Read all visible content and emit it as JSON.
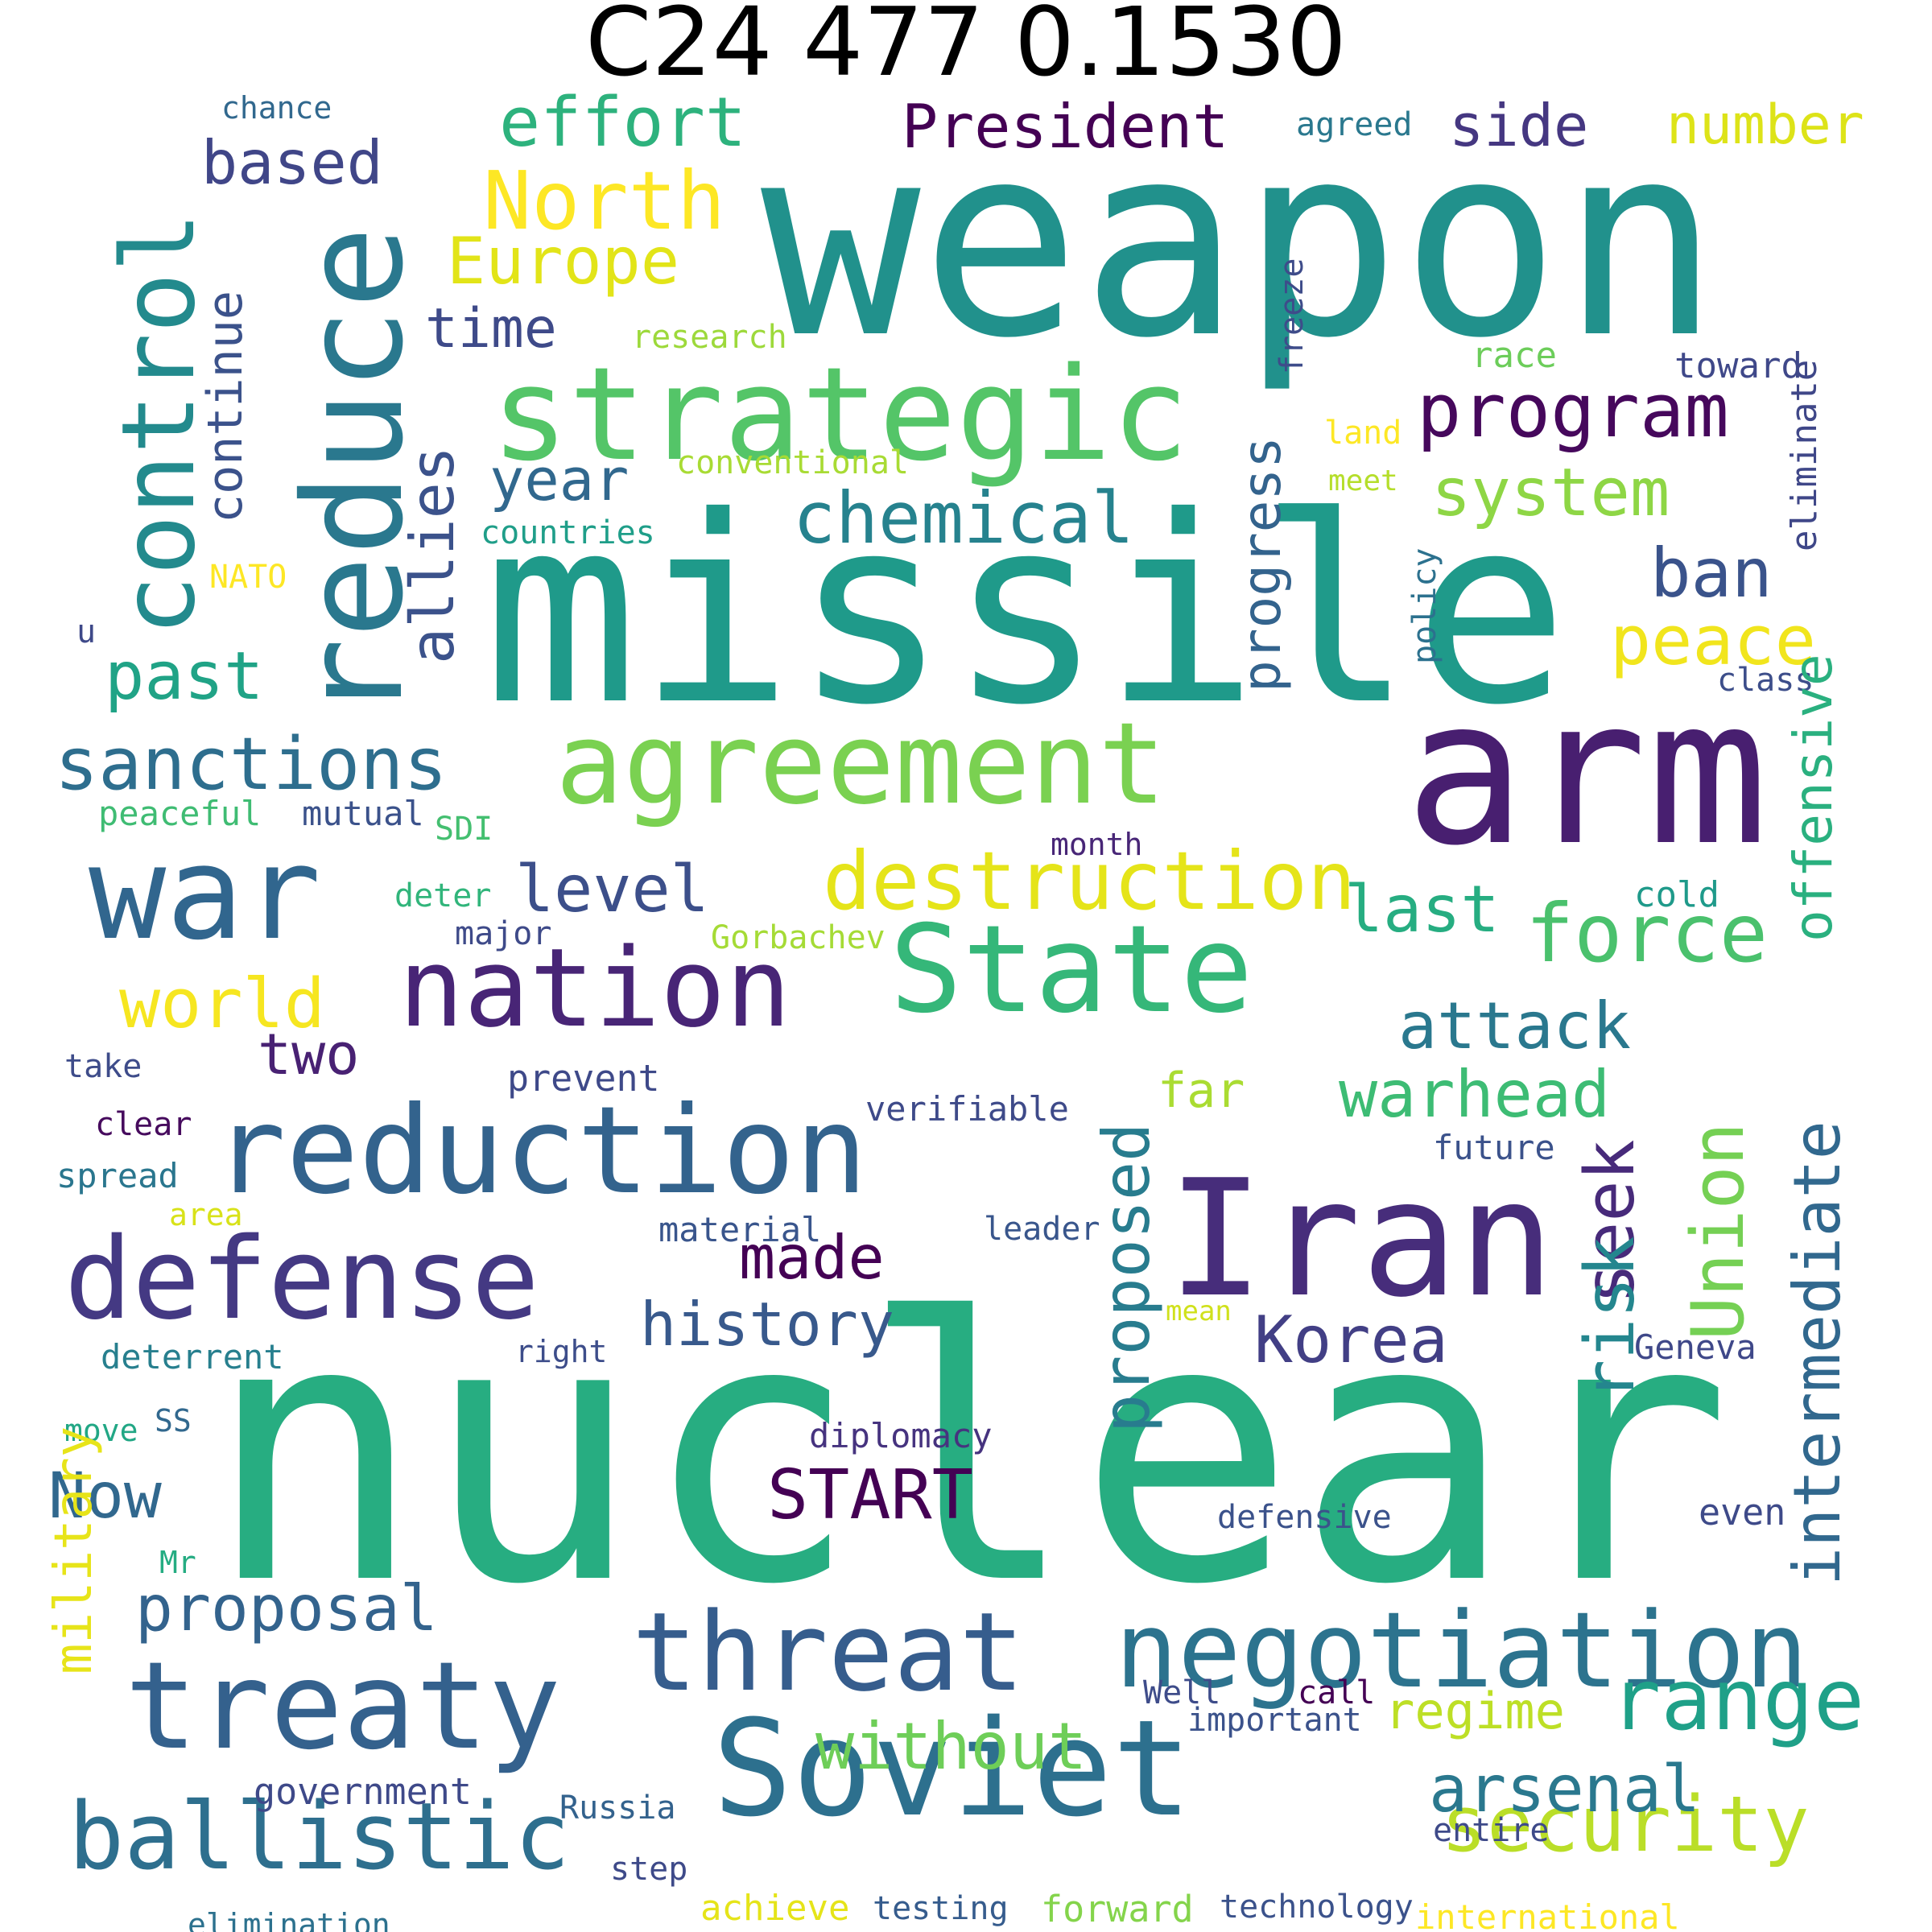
{
  "title": "C24 477 0.1530",
  "words": [
    {
      "text": "weapon",
      "color": "#21918c"
    },
    {
      "text": "missile",
      "color": "#1f9a8a"
    },
    {
      "text": "nuclear",
      "color": "#27ad81"
    },
    {
      "text": "arm",
      "color": "#481f70"
    },
    {
      "text": "reduce",
      "color": "#2a788e",
      "vertical": true
    },
    {
      "text": "control",
      "color": "#238a8d",
      "vertical": true
    },
    {
      "text": "strategic",
      "color": "#54c568"
    },
    {
      "text": "agreement",
      "color": "#7ad151"
    },
    {
      "text": "war",
      "color": "#31668e"
    },
    {
      "text": "State",
      "color": "#35b779"
    },
    {
      "text": "nation",
      "color": "#482576"
    },
    {
      "text": "reduction",
      "color": "#33638d"
    },
    {
      "text": "Iran",
      "color": "#472d7b"
    },
    {
      "text": "defense",
      "color": "#443983"
    },
    {
      "text": "Soviet",
      "color": "#2d708e"
    },
    {
      "text": "treaty",
      "color": "#34618d"
    },
    {
      "text": "threat",
      "color": "#365d8d"
    },
    {
      "text": "negotiation",
      "color": "#2c738e"
    },
    {
      "text": "ballistic",
      "color": "#2e6f8e"
    },
    {
      "text": "range",
      "color": "#1fa088"
    },
    {
      "text": "security",
      "color": "#bade28"
    },
    {
      "text": "effort",
      "color": "#2db27d"
    },
    {
      "text": "President",
      "color": "#440154"
    },
    {
      "text": "North",
      "color": "#fde725"
    },
    {
      "text": "Europe",
      "color": "#e2e418"
    },
    {
      "text": "based",
      "color": "#404688"
    },
    {
      "text": "continue",
      "color": "#3b528b",
      "vertical": true
    },
    {
      "text": "allies",
      "color": "#3b528b",
      "vertical": true
    },
    {
      "text": "time",
      "color": "#3e4a89"
    },
    {
      "text": "program",
      "color": "#46085c"
    },
    {
      "text": "side",
      "color": "#453781"
    },
    {
      "text": "number",
      "color": "#dde318"
    },
    {
      "text": "agreed",
      "color": "#2a788e"
    },
    {
      "text": "chance",
      "color": "#31688e"
    },
    {
      "text": "research",
      "color": "#9dd93b"
    },
    {
      "text": "race",
      "color": "#6ccd5a"
    },
    {
      "text": "toward",
      "color": "#3f4889"
    },
    {
      "text": "freeze",
      "color": "#3e4c8a",
      "vertical": true
    },
    {
      "text": "eliminate",
      "color": "#3f4788",
      "vertical": true
    },
    {
      "text": "land",
      "color": "#fde725"
    },
    {
      "text": "meet",
      "color": "#b5de2b"
    },
    {
      "text": "year",
      "color": "#31688e"
    },
    {
      "text": "conventional",
      "color": "#a8db34"
    },
    {
      "text": "countries",
      "color": "#1f9e89"
    },
    {
      "text": "NATO",
      "color": "#fde725"
    },
    {
      "text": "u",
      "color": "#3e4989"
    },
    {
      "text": "system",
      "color": "#8ed645"
    },
    {
      "text": "progress",
      "color": "#33638d",
      "vertical": true
    },
    {
      "text": "chemical",
      "color": "#26828e"
    },
    {
      "text": "ban",
      "color": "#3a538b"
    },
    {
      "text": "peace",
      "color": "#f1e51d"
    },
    {
      "text": "policy",
      "color": "#2c718e",
      "vertical": true
    },
    {
      "text": "class",
      "color": "#3d4e8a"
    },
    {
      "text": "offensive",
      "color": "#2ab07f",
      "vertical": true
    },
    {
      "text": "past",
      "color": "#20a386"
    },
    {
      "text": "sanctions",
      "color": "#2e6e8e"
    },
    {
      "text": "peaceful",
      "color": "#3fbc73"
    },
    {
      "text": "mutual",
      "color": "#3b528b"
    },
    {
      "text": "SDI",
      "color": "#44bf70"
    },
    {
      "text": "month",
      "color": "#482677"
    },
    {
      "text": "destruction",
      "color": "#e5e419"
    },
    {
      "text": "level",
      "color": "#3c4f8a"
    },
    {
      "text": "last",
      "color": "#26ad81"
    },
    {
      "text": "force",
      "color": "#4ac16d"
    },
    {
      "text": "cold",
      "color": "#1f9a8a"
    },
    {
      "text": "deter",
      "color": "#31b57b"
    },
    {
      "text": "major",
      "color": "#3e4a89"
    },
    {
      "text": "Gorbachev",
      "color": "#a5db36"
    },
    {
      "text": "world",
      "color": "#f6e620"
    },
    {
      "text": "two",
      "color": "#482173"
    },
    {
      "text": "attack",
      "color": "#2a788e"
    },
    {
      "text": "Union",
      "color": "#75d054",
      "vertical": true
    },
    {
      "text": "intermediate",
      "color": "#31688e",
      "vertical": true
    },
    {
      "text": "take",
      "color": "#3e4c8a"
    },
    {
      "text": "prevent",
      "color": "#3e4989"
    },
    {
      "text": "verifiable",
      "color": "#3e4a89"
    },
    {
      "text": "far",
      "color": "#aadc32"
    },
    {
      "text": "warhead",
      "color": "#3dbc74"
    },
    {
      "text": "clear",
      "color": "#460a5d"
    },
    {
      "text": "spread",
      "color": "#2a768e"
    },
    {
      "text": "area",
      "color": "#d8e219"
    },
    {
      "text": "made",
      "color": "#440154"
    },
    {
      "text": "material",
      "color": "#39558c"
    },
    {
      "text": "leader",
      "color": "#39568c"
    },
    {
      "text": "proposed",
      "color": "#287c8e",
      "vertical": true
    },
    {
      "text": "seek",
      "color": "#472a7a",
      "vertical": true
    },
    {
      "text": "future",
      "color": "#3b528b"
    },
    {
      "text": "history",
      "color": "#38598c"
    },
    {
      "text": "Korea",
      "color": "#423f85"
    },
    {
      "text": "mean",
      "color": "#d0e11c"
    },
    {
      "text": "deterrent",
      "color": "#277f8e"
    },
    {
      "text": "right",
      "color": "#3d4d8a"
    },
    {
      "text": "risk",
      "color": "#24868e",
      "vertical": true
    },
    {
      "text": "Geneva",
      "color": "#3f4889"
    },
    {
      "text": "move",
      "color": "#22a785"
    },
    {
      "text": "SS",
      "color": "#31688e"
    },
    {
      "text": "diplomacy",
      "color": "#46337f"
    },
    {
      "text": "Now",
      "color": "#31688e"
    },
    {
      "text": "START",
      "color": "#440154"
    },
    {
      "text": "military",
      "color": "#e7e419",
      "vertical": true
    },
    {
      "text": "Mr",
      "color": "#25ac82"
    },
    {
      "text": "defensive",
      "color": "#3b528b"
    },
    {
      "text": "even",
      "color": "#3e4a89"
    },
    {
      "text": "proposal",
      "color": "#33638d"
    },
    {
      "text": "Well",
      "color": "#3e4c8a"
    },
    {
      "text": "call",
      "color": "#440154"
    },
    {
      "text": "without",
      "color": "#6ece58"
    },
    {
      "text": "regime",
      "color": "#bddf26"
    },
    {
      "text": "important",
      "color": "#3b528b"
    },
    {
      "text": "government",
      "color": "#3e4989"
    },
    {
      "text": "arsenal",
      "color": "#2a788e"
    },
    {
      "text": "Russia",
      "color": "#33628d"
    },
    {
      "text": "entire",
      "color": "#3e4a89"
    },
    {
      "text": "step",
      "color": "#3e4a89"
    },
    {
      "text": "achieve",
      "color": "#e5e419"
    },
    {
      "text": "testing",
      "color": "#365c8d"
    },
    {
      "text": "forward",
      "color": "#84d44b"
    },
    {
      "text": "technology",
      "color": "#3b528b"
    },
    {
      "text": "international",
      "color": "#fde725"
    },
    {
      "text": "elimination",
      "color": "#2c718e"
    }
  ]
}
